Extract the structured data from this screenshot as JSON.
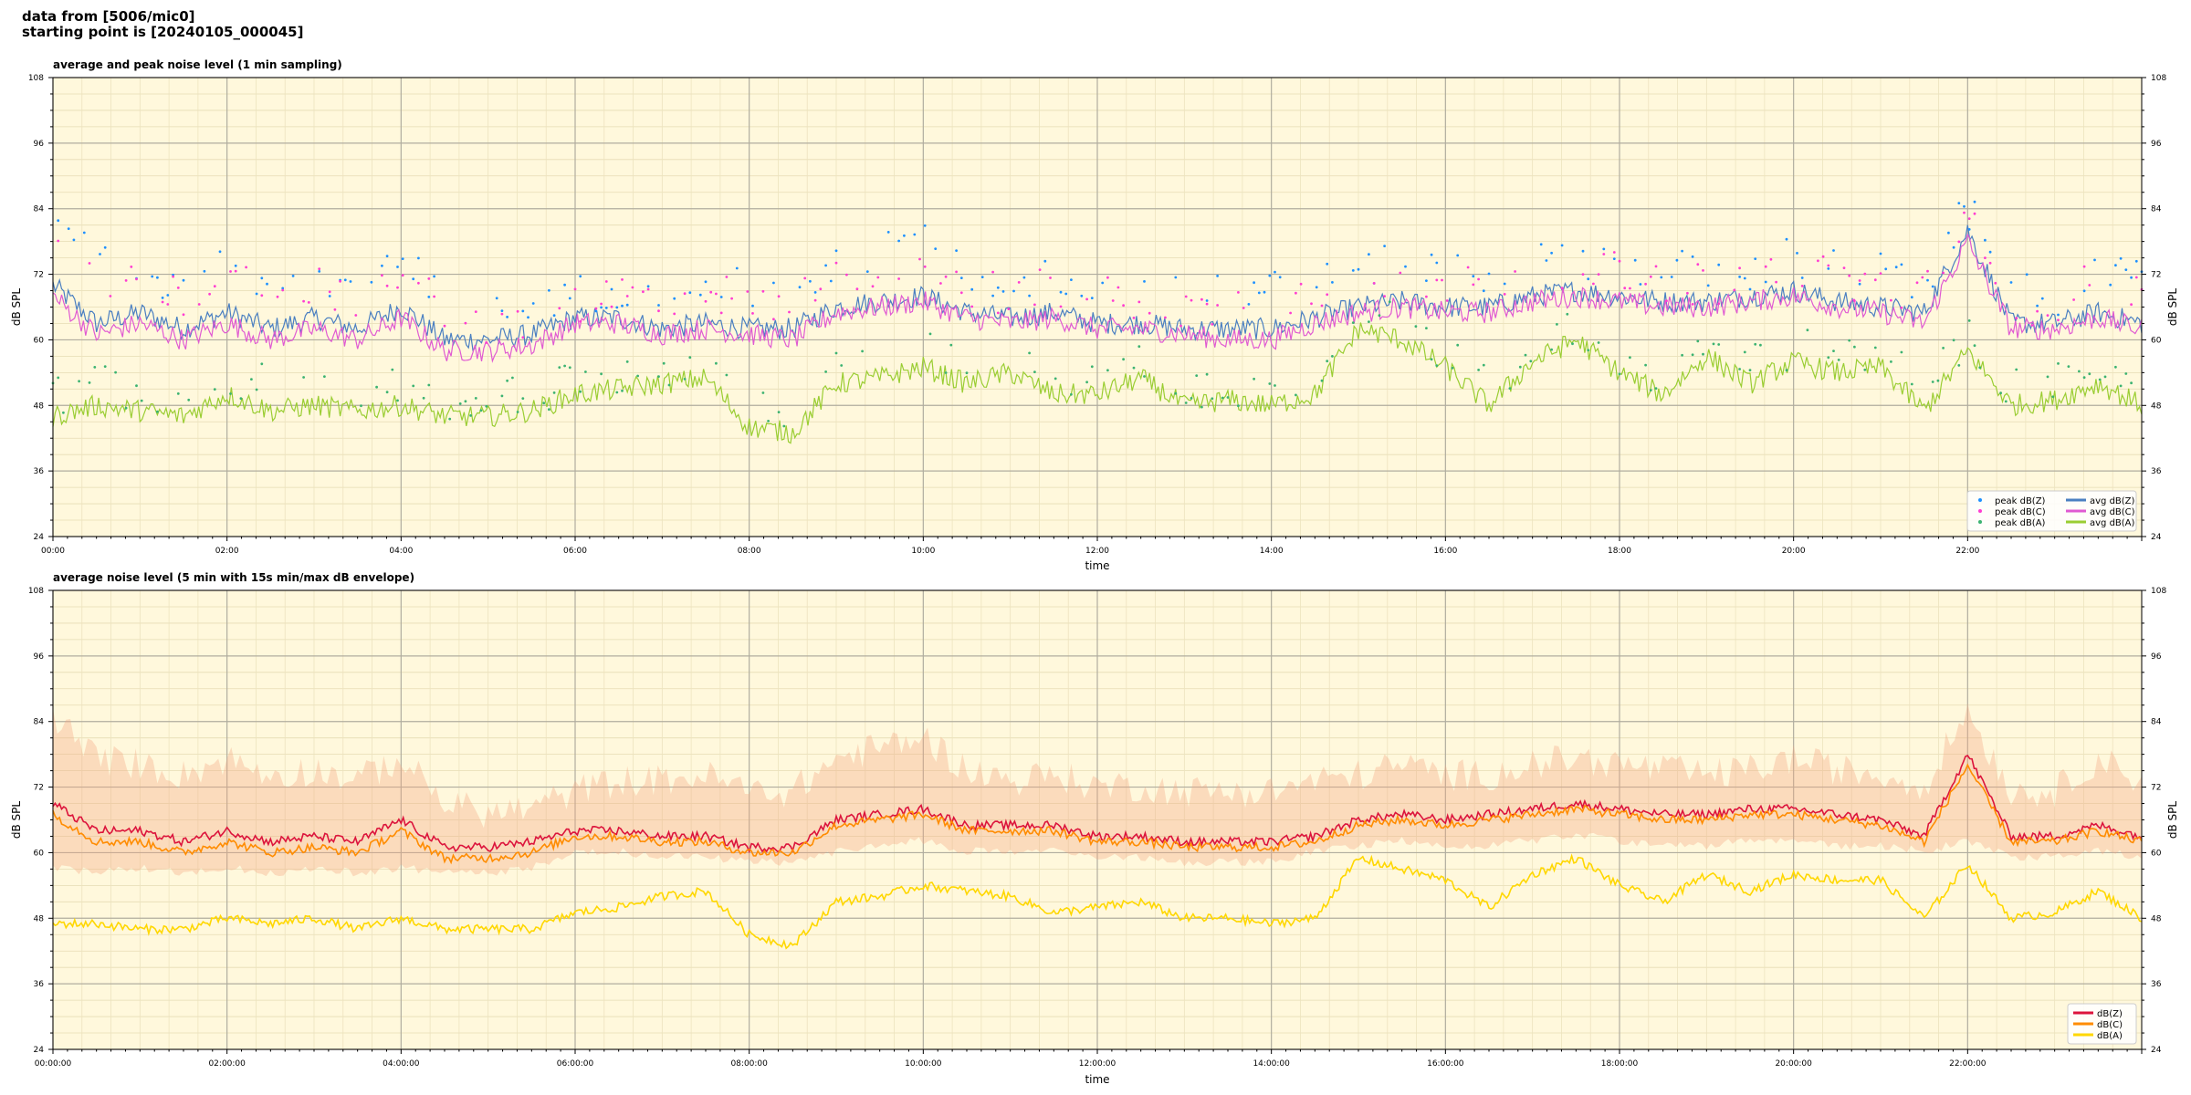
{
  "header": {
    "line1": "data from [5006/mic0]",
    "line2": "starting point is [20240105_000045]"
  },
  "chart_data": [
    {
      "type": "line",
      "title": "average and peak noise level (1 min sampling)",
      "xlabel": "time",
      "ylabel": "dB SPL",
      "ylim": [
        24,
        108
      ],
      "yticks": [
        24,
        36,
        48,
        60,
        72,
        84,
        96,
        108
      ],
      "xlim_hours": [
        0,
        24
      ],
      "xticks": [
        "00:00",
        "02:00",
        "04:00",
        "06:00",
        "08:00",
        "10:00",
        "12:00",
        "14:00",
        "16:00",
        "18:00",
        "20:00",
        "22:00"
      ],
      "grid": true,
      "legend_position": "bottom-right",
      "x_hours": [
        0,
        0.5,
        1,
        1.5,
        2,
        2.5,
        3,
        3.5,
        4,
        4.5,
        5,
        5.5,
        6,
        6.5,
        7,
        7.5,
        8,
        8.5,
        9,
        9.5,
        10,
        10.5,
        11,
        11.5,
        12,
        12.5,
        13,
        13.5,
        14,
        14.5,
        15,
        15.5,
        16,
        16.5,
        17,
        17.5,
        18,
        18.5,
        19,
        19.5,
        20,
        20.5,
        21,
        21.5,
        22,
        22.5,
        23,
        23.5,
        24
      ],
      "series": [
        {
          "name": "avg dB(Z)",
          "color": "#4a7fc1",
          "kind": "line",
          "values": [
            70,
            63,
            65,
            62,
            65,
            62,
            64,
            62,
            66,
            60,
            60,
            61,
            64,
            64,
            62,
            63,
            62,
            62,
            66,
            67,
            68,
            65,
            64,
            65,
            63,
            63,
            62,
            62,
            62,
            64,
            66,
            67,
            66,
            66,
            68,
            69,
            68,
            67,
            67,
            68,
            69,
            67,
            66,
            65,
            80,
            63,
            63,
            65,
            63
          ]
        },
        {
          "name": "avg dB(C)",
          "color": "#e05ad2",
          "kind": "line",
          "values": [
            68,
            61,
            63,
            60,
            63,
            60,
            62,
            60,
            64,
            58,
            58,
            59,
            63,
            63,
            61,
            62,
            61,
            60,
            65,
            66,
            67,
            64,
            63,
            64,
            62,
            62,
            61,
            60,
            60,
            63,
            65,
            66,
            65,
            65,
            67,
            68,
            67,
            66,
            66,
            67,
            68,
            66,
            65,
            63,
            78,
            62,
            62,
            64,
            62
          ]
        },
        {
          "name": "avg dB(A)",
          "color": "#9acd32",
          "kind": "line",
          "values": [
            46,
            48,
            47,
            46,
            50,
            47,
            48,
            47,
            48,
            46,
            46,
            47,
            50,
            51,
            52,
            53,
            44,
            43,
            52,
            53,
            55,
            52,
            54,
            50,
            50,
            53,
            48,
            49,
            48,
            50,
            62,
            60,
            55,
            48,
            56,
            60,
            54,
            50,
            57,
            52,
            56,
            54,
            55,
            47,
            58,
            48,
            49,
            52,
            48
          ]
        },
        {
          "name": "peak dB(Z)",
          "color": "#1e90ff",
          "kind": "dots",
          "values": [
            80,
            74,
            72,
            70,
            74,
            71,
            72,
            70,
            75,
            66,
            64,
            65,
            68,
            70,
            70,
            72,
            68,
            68,
            74,
            76,
            78,
            72,
            70,
            72,
            70,
            70,
            68,
            68,
            70,
            71,
            72,
            74,
            72,
            72,
            74,
            75,
            74,
            73,
            72,
            73,
            75,
            73,
            72,
            70,
            84,
            68,
            68,
            75,
            70
          ]
        },
        {
          "name": "peak dB(C)",
          "color": "#ff3ed1",
          "kind": "dots",
          "values": [
            78,
            72,
            70,
            68,
            72,
            69,
            70,
            68,
            73,
            64,
            62,
            63,
            67,
            68,
            68,
            70,
            66,
            66,
            72,
            74,
            76,
            70,
            68,
            70,
            68,
            68,
            66,
            66,
            68,
            69,
            70,
            72,
            70,
            70,
            72,
            73,
            72,
            71,
            70,
            71,
            73,
            71,
            70,
            68,
            82,
            66,
            66,
            73,
            68
          ]
        },
        {
          "name": "peak dB(A)",
          "color": "#3cb371",
          "kind": "dots",
          "values": [
            50,
            52,
            51,
            50,
            54,
            51,
            52,
            51,
            52,
            49,
            49,
            50,
            53,
            54,
            55,
            56,
            47,
            46,
            55,
            56,
            58,
            55,
            57,
            53,
            53,
            56,
            51,
            52,
            51,
            53,
            65,
            63,
            58,
            51,
            59,
            63,
            57,
            53,
            60,
            55,
            59,
            57,
            58,
            50,
            61,
            51,
            52,
            55,
            51
          ]
        }
      ]
    },
    {
      "type": "line",
      "title": "average noise level (5 min with 15s min/max dB envelope)",
      "xlabel": "time",
      "ylabel": "dB SPL",
      "ylim": [
        24,
        108
      ],
      "yticks": [
        24,
        36,
        48,
        60,
        72,
        84,
        96,
        108
      ],
      "xlim_hours": [
        0,
        24
      ],
      "xticks": [
        "00:00:00",
        "02:00:00",
        "04:00:00",
        "06:00:00",
        "08:00:00",
        "10:00:00",
        "12:00:00",
        "14:00:00",
        "16:00:00",
        "18:00:00",
        "20:00:00",
        "22:00:00"
      ],
      "grid": true,
      "legend_position": "bottom-right",
      "x_hours": [
        0,
        0.5,
        1,
        1.5,
        2,
        2.5,
        3,
        3.5,
        4,
        4.5,
        5,
        5.5,
        6,
        6.5,
        7,
        7.5,
        8,
        8.5,
        9,
        9.5,
        10,
        10.5,
        11,
        11.5,
        12,
        12.5,
        13,
        13.5,
        14,
        14.5,
        15,
        15.5,
        16,
        16.5,
        17,
        17.5,
        18,
        18.5,
        19,
        19.5,
        20,
        20.5,
        21,
        21.5,
        22,
        22.5,
        23,
        23.5,
        24
      ],
      "envelope": {
        "color": "#f4a582",
        "upper": [
          84,
          76,
          75,
          73,
          76,
          73,
          74,
          72,
          76,
          68,
          66,
          67,
          70,
          72,
          72,
          73,
          70,
          70,
          76,
          78,
          80,
          74,
          72,
          73,
          71,
          71,
          70,
          70,
          70,
          72,
          73,
          75,
          73,
          73,
          75,
          76,
          75,
          74,
          73,
          74,
          76,
          74,
          73,
          71,
          85,
          70,
          70,
          76,
          72
        ],
        "lower": [
          58,
          57,
          58,
          57,
          58,
          57,
          58,
          57,
          58,
          57,
          57,
          58,
          61,
          61,
          60,
          60,
          59,
          59,
          61,
          62,
          63,
          61,
          61,
          61,
          60,
          60,
          59,
          59,
          59,
          61,
          62,
          63,
          62,
          62,
          63,
          64,
          63,
          62,
          62,
          63,
          63,
          62,
          62,
          61,
          63,
          60,
          60,
          61,
          60
        ]
      },
      "series": [
        {
          "name": "dB(Z)",
          "color": "#dc143c",
          "kind": "line",
          "values": [
            69,
            64,
            64,
            62,
            64,
            62,
            63,
            62,
            66,
            61,
            61,
            62,
            64,
            64,
            63,
            63,
            61,
            61,
            66,
            67,
            68,
            65,
            65,
            65,
            63,
            63,
            62,
            62,
            62,
            63,
            66,
            67,
            66,
            67,
            68,
            69,
            68,
            67,
            67,
            68,
            68,
            67,
            66,
            63,
            78,
            63,
            63,
            65,
            63
          ]
        },
        {
          "name": "dB(C)",
          "color": "#ff8c00",
          "kind": "line",
          "values": [
            67,
            62,
            62,
            60,
            62,
            60,
            61,
            60,
            64,
            59,
            59,
            60,
            63,
            63,
            62,
            62,
            60,
            60,
            65,
            66,
            67,
            64,
            64,
            64,
            62,
            62,
            61,
            61,
            61,
            62,
            65,
            66,
            65,
            66,
            67,
            68,
            67,
            66,
            66,
            67,
            67,
            66,
            65,
            62,
            76,
            62,
            62,
            64,
            62
          ]
        },
        {
          "name": "dB(A)",
          "color": "#ffd700",
          "kind": "line",
          "values": [
            47,
            47,
            46,
            46,
            48,
            47,
            48,
            46,
            48,
            46,
            46,
            46,
            49,
            50,
            52,
            53,
            45,
            43,
            51,
            52,
            54,
            53,
            52,
            49,
            50,
            51,
            48,
            48,
            47,
            48,
            59,
            57,
            55,
            50,
            56,
            59,
            54,
            51,
            56,
            53,
            56,
            55,
            55,
            48,
            58,
            48,
            49,
            53,
            48
          ]
        }
      ]
    }
  ]
}
